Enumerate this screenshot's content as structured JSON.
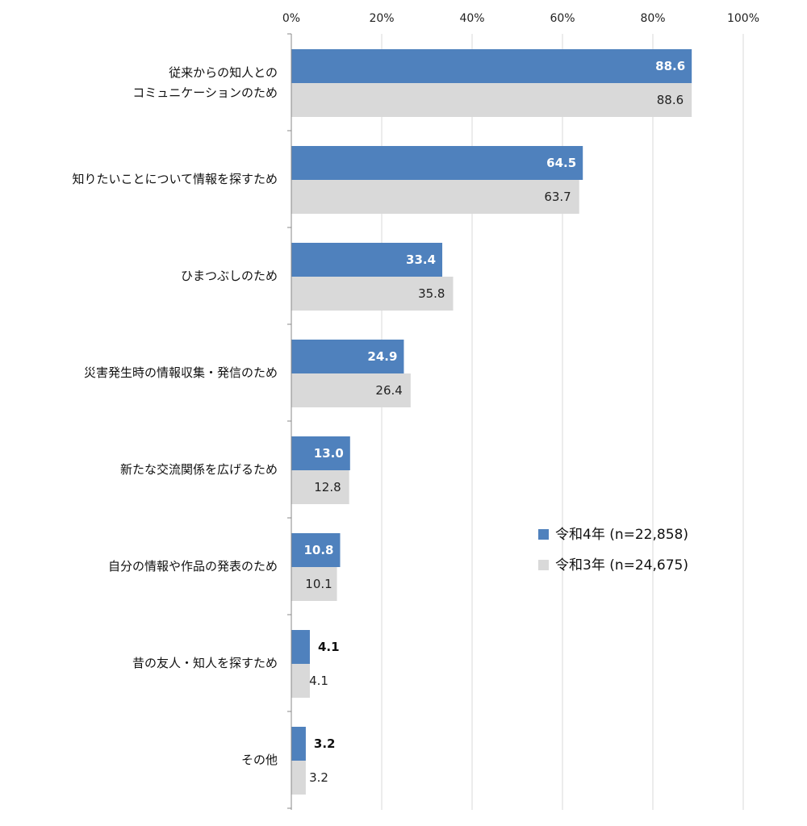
{
  "chart_data": {
    "type": "bar",
    "orientation": "horizontal",
    "title": "",
    "xlabel": "",
    "ylabel": "",
    "xlim": [
      0,
      100
    ],
    "x_ticks": [
      "0%",
      "20%",
      "40%",
      "60%",
      "80%",
      "100%"
    ],
    "grid": true,
    "legend_position": "right-middle",
    "categories": [
      [
        "従来からの知人との",
        "コミュニケーションのため"
      ],
      [
        "知りたいことについて情報を探すため"
      ],
      [
        "ひまつぶしのため"
      ],
      [
        "災害発生時の情報収集・発信のため"
      ],
      [
        "新たな交流関係を広げるため"
      ],
      [
        "自分の情報や作品の発表のため"
      ],
      [
        "昔の友人・知人を探すため"
      ],
      [
        "その他"
      ]
    ],
    "series": [
      {
        "name": "令和4年 (n=22,858)",
        "color": "#4f81bd",
        "values": [
          88.6,
          64.5,
          33.4,
          24.9,
          13.0,
          10.8,
          4.1,
          3.2
        ],
        "labels": [
          "88.6",
          "64.5",
          "33.4",
          "24.9",
          "13.0",
          "10.8",
          "4.1",
          "3.2"
        ]
      },
      {
        "name": "令和3年 (n=24,675)",
        "color": "#d9d9d9",
        "values": [
          88.6,
          63.7,
          35.8,
          26.4,
          12.8,
          10.1,
          4.1,
          3.2
        ],
        "labels": [
          "88.6",
          "63.7",
          "35.8",
          "26.4",
          "12.8",
          "10.1",
          "4.1",
          "3.2"
        ]
      }
    ]
  }
}
